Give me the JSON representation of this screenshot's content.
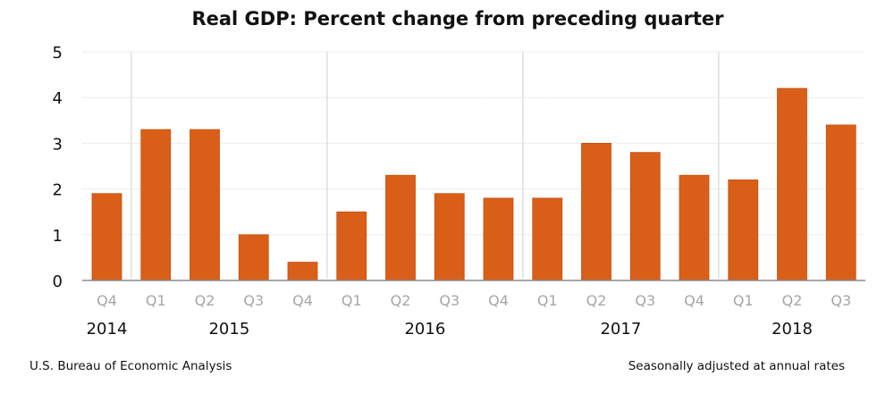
{
  "chart_data": {
    "type": "bar",
    "title": "Real GDP:  Percent change from preceding quarter",
    "xlabel": "",
    "ylabel": "",
    "ylim": [
      0,
      5
    ],
    "yticks": [
      "0",
      "1",
      "2",
      "3",
      "4",
      "5"
    ],
    "grid": true,
    "categories": [
      "Q4",
      "Q1",
      "Q2",
      "Q3",
      "Q4",
      "Q1",
      "Q2",
      "Q3",
      "Q4",
      "Q1",
      "Q2",
      "Q3",
      "Q4",
      "Q1",
      "Q2",
      "Q3"
    ],
    "category_years": [
      "2014",
      "2015",
      "2015",
      "2015",
      "2015",
      "2016",
      "2016",
      "2016",
      "2016",
      "2017",
      "2017",
      "2017",
      "2017",
      "2018",
      "2018",
      "2018"
    ],
    "year_labels": [
      "2014",
      "2015",
      "2016",
      "2017",
      "2018"
    ],
    "series": [
      {
        "name": "Real GDP percent change",
        "color": "#d95f18",
        "values": [
          1.9,
          3.3,
          3.3,
          1.0,
          0.4,
          1.5,
          2.3,
          1.9,
          1.8,
          1.8,
          3.0,
          2.8,
          2.3,
          2.2,
          4.2,
          3.4
        ]
      }
    ],
    "legend": "none"
  },
  "footer": {
    "source": "U.S. Bureau of Economic Analysis",
    "note": "Seasonally adjusted at annual rates"
  },
  "colors": {
    "bar": "#d95f18",
    "bar_edge": "#c8500f",
    "grid": "#e2e2e2",
    "separator": "#d9d9d9",
    "axis": "#8c8c8c",
    "quarter_text": "#a6a6a6"
  }
}
